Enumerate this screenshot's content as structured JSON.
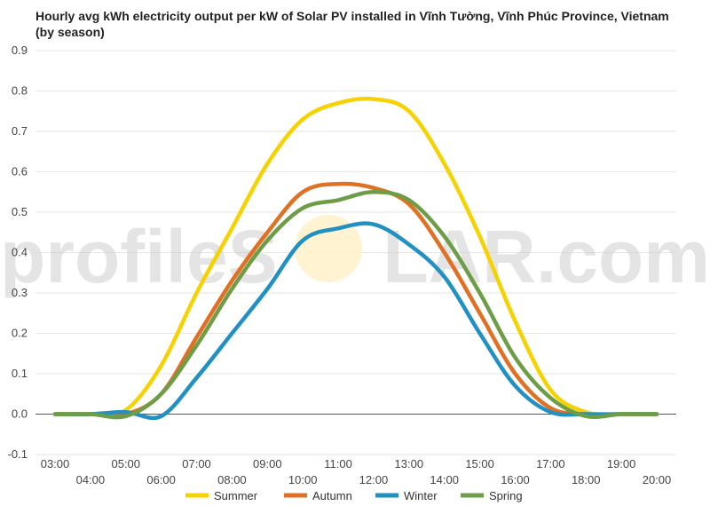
{
  "chart_data": {
    "type": "line",
    "title": "Hourly avg kWh electricity output per kW of Solar PV installed in Vĩnh Tường, Vĩnh Phúc Province, Vietnam (by season)",
    "xlabel": "",
    "ylabel": "",
    "ylim": [
      -0.1,
      0.9
    ],
    "yticks": [
      "-0.1",
      "0.0",
      "0.1",
      "0.2",
      "0.3",
      "0.4",
      "0.5",
      "0.6",
      "0.7",
      "0.8",
      "0.9"
    ],
    "categories": [
      "03:00",
      "04:00",
      "05:00",
      "06:00",
      "07:00",
      "08:00",
      "09:00",
      "10:00",
      "11:00",
      "12:00",
      "13:00",
      "14:00",
      "15:00",
      "16:00",
      "17:00",
      "18:00",
      "19:00",
      "20:00"
    ],
    "grid": true,
    "legend_position": "bottom",
    "series": [
      {
        "name": "Summer",
        "color": "#f5d200",
        "values": [
          0,
          0,
          0.01,
          0.12,
          0.3,
          0.46,
          0.62,
          0.73,
          0.77,
          0.78,
          0.75,
          0.62,
          0.44,
          0.23,
          0.06,
          0.005,
          0,
          0
        ]
      },
      {
        "name": "Autumn",
        "color": "#e07024",
        "values": [
          0,
          0,
          0,
          0.05,
          0.19,
          0.33,
          0.45,
          0.55,
          0.57,
          0.56,
          0.52,
          0.4,
          0.25,
          0.1,
          0.015,
          0,
          0,
          0
        ]
      },
      {
        "name": "Winter",
        "color": "#2191c2",
        "values": [
          0,
          0,
          0.005,
          -0.005,
          0.09,
          0.2,
          0.31,
          0.43,
          0.46,
          0.47,
          0.42,
          0.34,
          0.2,
          0.07,
          0.005,
          0,
          0,
          0
        ]
      },
      {
        "name": "Spring",
        "color": "#6e9d47",
        "values": [
          0,
          0,
          -0.005,
          0.05,
          0.17,
          0.31,
          0.43,
          0.51,
          0.53,
          0.55,
          0.53,
          0.44,
          0.3,
          0.14,
          0.04,
          -0.005,
          0,
          0
        ]
      }
    ]
  },
  "watermark": {
    "text_left": "profileS",
    "text_right": "LAR.com"
  },
  "colors": {
    "grid": "#e6e6e6",
    "zero_line": "#555555",
    "sun": "#fff1c9"
  }
}
